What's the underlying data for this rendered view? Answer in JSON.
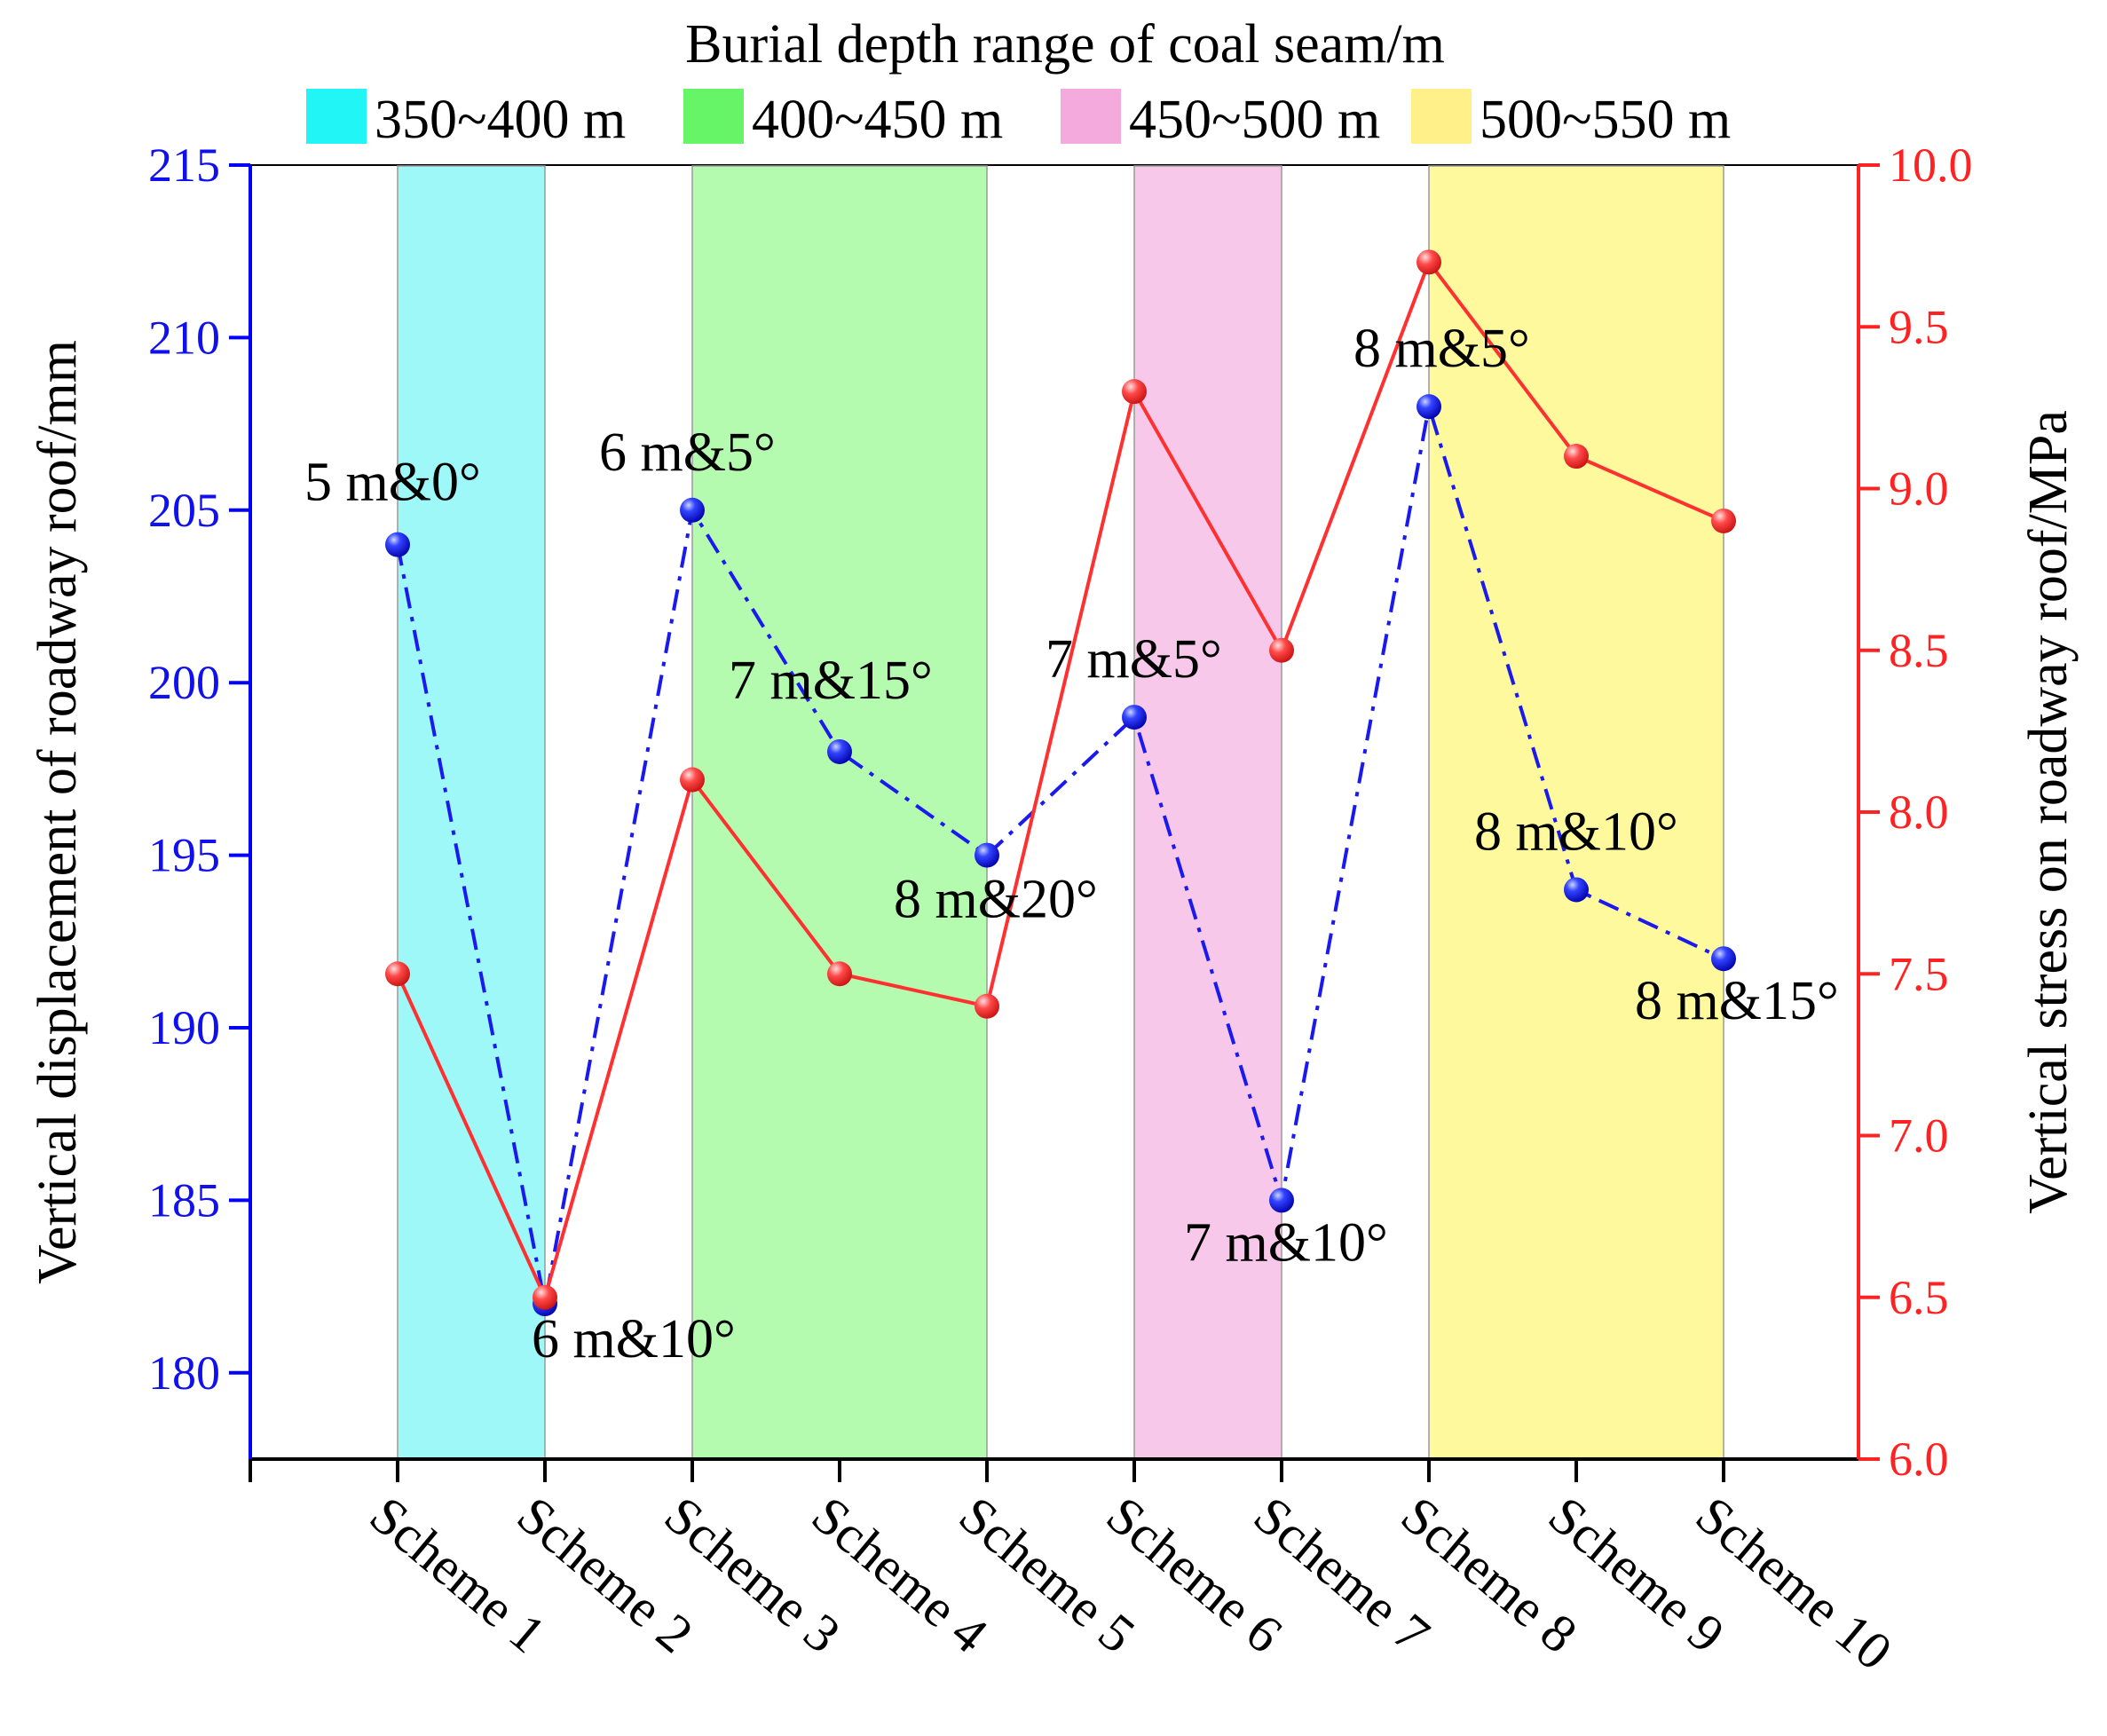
{
  "colors": {
    "left_axis": "#0000ff",
    "right_axis": "#ff2222",
    "displacement_line": "#1a1aee",
    "stress_line": "#ff3030"
  },
  "legend": {
    "title": "Burial depth range of coal seam/m",
    "items": [
      {
        "label": "350~400 m",
        "color": "#22f5f5"
      },
      {
        "label": "400~450 m",
        "color": "#66f566"
      },
      {
        "label": "450~500 m",
        "color": "#f5aadd"
      },
      {
        "label": "500~550 m",
        "color": "#fff08a"
      }
    ]
  },
  "chart_data": {
    "type": "line",
    "title": "Burial depth range of coal seam/m",
    "categories": [
      "Scheme 1",
      "Scheme 2",
      "Scheme 3",
      "Scheme 4",
      "Scheme 5",
      "Scheme 6",
      "Scheme 7",
      "Scheme 8",
      "Scheme 9",
      "Scheme 10"
    ],
    "ylabel": "Vertical displacement of roadway roof/mm",
    "y2label": "Vertical stress on roadway roof/MPa",
    "ylim": [
      177.5,
      215
    ],
    "y2lim": [
      6.0,
      10.0
    ],
    "yticks": [
      180,
      185,
      190,
      195,
      200,
      205,
      210,
      215
    ],
    "y2ticks": [
      "6.0",
      "6.5",
      "7.0",
      "7.5",
      "8.0",
      "8.5",
      "9.0",
      "9.5",
      "10.0"
    ],
    "series": [
      {
        "name": "Vertical displacement of roadway roof",
        "axis": "left",
        "style": "dash-dot",
        "values": [
          204,
          182,
          205,
          198,
          195,
          199,
          185,
          208,
          194,
          192
        ],
        "point_labels": [
          "5 m&0°",
          "6 m&10°",
          "6 m&5°",
          "7 m&15°",
          "8 m&20°",
          "7 m&5°",
          "7 m&10°",
          "8 m&5°",
          "8 m&10°",
          "8 m&15°"
        ]
      },
      {
        "name": "Vertical stress on roadway roof",
        "axis": "right",
        "style": "solid",
        "values": [
          7.5,
          6.5,
          8.1,
          7.5,
          7.4,
          9.3,
          8.5,
          9.7,
          9.1,
          8.9
        ]
      }
    ],
    "depth_bands": [
      {
        "range": "350~400 m",
        "from_scheme": 1,
        "to_scheme": 2
      },
      {
        "range": "400~450 m",
        "from_scheme": 3,
        "to_scheme": 5
      },
      {
        "range": "450~500 m",
        "from_scheme": 6,
        "to_scheme": 7
      },
      {
        "range": "500~550 m",
        "from_scheme": 8,
        "to_scheme": 10
      }
    ]
  }
}
